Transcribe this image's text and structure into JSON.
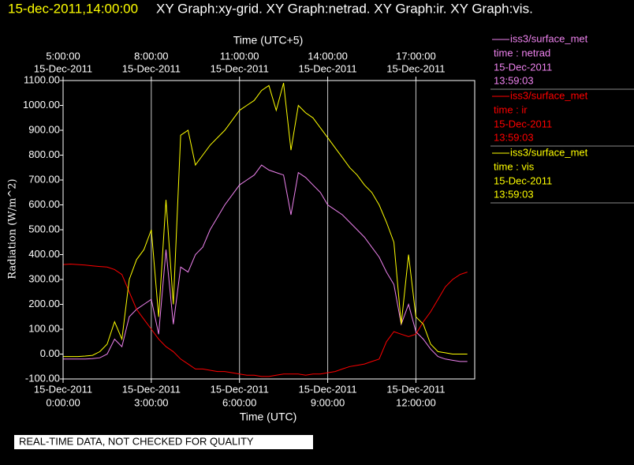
{
  "chart_data": {
    "type": "line",
    "timestamp": "15-dec-2011,14:00:00",
    "title": "XY Graph:xy-grid.  XY Graph:netrad.  XY Graph:ir.  XY Graph:vis.",
    "xlabel": "Time (UTC)",
    "x2label": "Time (UTC+5)",
    "ylabel": "Radiation (W/m^2)",
    "footer": "REAL-TIME DATA, NOT CHECKED FOR QUALITY",
    "xlim": [
      0,
      14
    ],
    "ylim": [
      -100,
      1100
    ],
    "grid": "x",
    "xticks": [
      {
        "value": 0,
        "label": "0:00:00",
        "date": "15-Dec-2011"
      },
      {
        "value": 3,
        "label": "3:00:00",
        "date": "15-Dec-2011"
      },
      {
        "value": 6,
        "label": "6:00:00",
        "date": "15-Dec-2011"
      },
      {
        "value": 9,
        "label": "9:00:00",
        "date": "15-Dec-2011"
      },
      {
        "value": 12,
        "label": "12:00:00",
        "date": "15-Dec-2011"
      }
    ],
    "x2ticks": [
      {
        "value": 0,
        "label": "5:00:00",
        "date": "15-Dec-2011"
      },
      {
        "value": 3,
        "label": "8:00:00",
        "date": "15-Dec-2011"
      },
      {
        "value": 6,
        "label": "11:00:00",
        "date": "15-Dec-2011"
      },
      {
        "value": 9,
        "label": "14:00:00",
        "date": "15-Dec-2011"
      },
      {
        "value": 12,
        "label": "17:00:00",
        "date": "15-Dec-2011"
      }
    ],
    "yticks": [
      {
        "value": -100,
        "label": "-100.00"
      },
      {
        "value": 0,
        "label": "0.00"
      },
      {
        "value": 100,
        "label": "100.00"
      },
      {
        "value": 200,
        "label": "200.00"
      },
      {
        "value": 300,
        "label": "300.00"
      },
      {
        "value": 400,
        "label": "400.00"
      },
      {
        "value": 500,
        "label": "500.00"
      },
      {
        "value": 600,
        "label": "600.00"
      },
      {
        "value": 700,
        "label": "700.00"
      },
      {
        "value": 800,
        "label": "800.00"
      },
      {
        "value": 900,
        "label": "900.00"
      },
      {
        "value": 1000,
        "label": "1000.00"
      },
      {
        "value": 1100,
        "label": "1100.00"
      }
    ],
    "x": [
      0,
      0.25,
      0.5,
      0.75,
      1,
      1.25,
      1.5,
      1.75,
      2,
      2.25,
      2.5,
      2.75,
      3,
      3.25,
      3.5,
      3.75,
      4,
      4.25,
      4.5,
      4.75,
      5,
      5.25,
      5.5,
      5.75,
      6,
      6.25,
      6.5,
      6.75,
      7,
      7.25,
      7.5,
      7.75,
      8,
      8.25,
      8.5,
      8.75,
      9,
      9.25,
      9.5,
      9.75,
      10,
      10.25,
      10.5,
      10.75,
      11,
      11.25,
      11.5,
      11.75,
      12,
      12.25,
      12.5,
      12.75,
      13,
      13.25,
      13.5,
      13.75
    ],
    "series": [
      {
        "name": "time : netrad",
        "source": "iss3/surface_met",
        "date": "15-Dec-2011",
        "time": "13:59:03",
        "color": "#ee82ee",
        "values": [
          -20,
          -20,
          -20,
          -20,
          -18,
          -15,
          0,
          60,
          30,
          150,
          180,
          200,
          220,
          80,
          420,
          120,
          350,
          330,
          400,
          430,
          500,
          550,
          600,
          640,
          680,
          700,
          720,
          760,
          740,
          730,
          720,
          560,
          730,
          710,
          680,
          650,
          600,
          580,
          560,
          530,
          500,
          470,
          430,
          390,
          330,
          280,
          120,
          200,
          90,
          60,
          20,
          -10,
          -20,
          -25,
          -30,
          -30
        ]
      },
      {
        "name": "time : ir",
        "source": "iss3/surface_met",
        "date": "15-Dec-2011",
        "time": "13:59:03",
        "color": "#ff0000",
        "values": [
          360,
          362,
          360,
          358,
          355,
          352,
          350,
          340,
          320,
          250,
          180,
          140,
          100,
          60,
          30,
          10,
          -20,
          -40,
          -60,
          -60,
          -65,
          -70,
          -70,
          -75,
          -80,
          -85,
          -85,
          -90,
          -90,
          -85,
          -80,
          -80,
          -80,
          -85,
          -80,
          -80,
          -75,
          -70,
          -60,
          -50,
          -45,
          -40,
          -30,
          -20,
          50,
          90,
          80,
          70,
          80,
          130,
          170,
          220,
          270,
          300,
          320,
          330
        ]
      },
      {
        "name": "time : vis",
        "source": "iss3/surface_met",
        "date": "15-Dec-2011",
        "time": "13:59:03",
        "color": "#ffff00",
        "values": [
          -10,
          -10,
          -10,
          -8,
          -5,
          10,
          40,
          130,
          60,
          300,
          380,
          420,
          500,
          150,
          620,
          200,
          880,
          900,
          760,
          800,
          840,
          870,
          900,
          940,
          980,
          1000,
          1020,
          1060,
          1080,
          980,
          1090,
          820,
          1000,
          970,
          950,
          910,
          870,
          830,
          790,
          750,
          720,
          680,
          650,
          600,
          530,
          450,
          120,
          400,
          150,
          120,
          40,
          10,
          5,
          0,
          0,
          0
        ]
      }
    ]
  }
}
